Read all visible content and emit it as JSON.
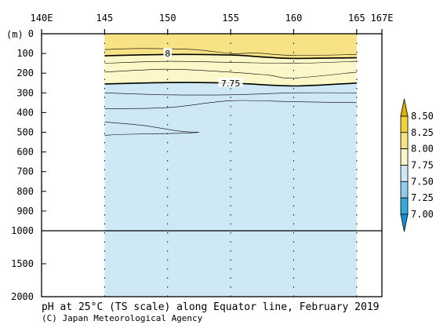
{
  "chart_data": {
    "type": "contour",
    "title": "pH at 25°C (TS scale) along Equator line, February 2019",
    "credit": "(C) Japan Meteorological Agency",
    "y_unit": "(m)",
    "x_ticks": [
      {
        "value": 140,
        "label": "140E"
      },
      {
        "value": 145,
        "label": "145"
      },
      {
        "value": 150,
        "label": "150"
      },
      {
        "value": 155,
        "label": "155"
      },
      {
        "value": 160,
        "label": "160"
      },
      {
        "value": 165,
        "label": "165"
      },
      {
        "value": 167,
        "label": "167E"
      }
    ],
    "xlim": [
      140,
      167
    ],
    "data_xlim": [
      145,
      165
    ],
    "y_ticks_upper": [
      0,
      100,
      200,
      300,
      400,
      500,
      600,
      700,
      800,
      900,
      1000
    ],
    "y_ticks_lower": [
      1500,
      2000
    ],
    "y_break": 1000,
    "ylim": [
      0,
      2000
    ],
    "station_lines": [
      150,
      155,
      160
    ],
    "contour_levels": [
      7.0,
      7.25,
      7.5,
      7.75,
      8.0,
      8.25,
      8.5
    ],
    "colorbar": {
      "labels": [
        "8.50",
        "8.25",
        "8.00",
        "7.75",
        "7.50",
        "7.25",
        "7.00"
      ],
      "band_colors": [
        "#f2d13a",
        "#f7e385",
        "#fcf7c8",
        "#cfe8f6",
        "#8fcbec",
        "#35a8de"
      ],
      "tip_top_color": "#e6b000",
      "tip_bottom_color": "#1a8fd4"
    },
    "fill_regions": [
      {
        "range": "8.00-8.25",
        "color": "#f7e385"
      },
      {
        "range": "7.75-8.00",
        "color": "#fcf7c8"
      },
      {
        "range": "7.50-7.75",
        "color": "#cfe8f6"
      }
    ],
    "contours": [
      {
        "level": 8.0,
        "bold": true,
        "label": "8",
        "label_at": [
          150,
          100
        ],
        "points": [
          [
            145,
            112
          ],
          [
            150,
            105
          ],
          [
            155,
            108
          ],
          [
            158,
            120
          ],
          [
            160,
            125
          ],
          [
            165,
            122
          ]
        ]
      },
      {
        "level": 7.75,
        "bold": true,
        "label": "7.75",
        "label_at": [
          155,
          250
        ],
        "points": [
          [
            145,
            255
          ],
          [
            150,
            248
          ],
          [
            155,
            250
          ],
          [
            160,
            265
          ],
          [
            165,
            250
          ]
        ]
      },
      {
        "level": 8.05,
        "bold": false,
        "points": [
          [
            145,
            80
          ],
          [
            148,
            75
          ],
          [
            152,
            80
          ],
          [
            155,
            100
          ],
          [
            157,
            98
          ],
          [
            160,
            110
          ],
          [
            165,
            105
          ]
        ]
      },
      {
        "level": 7.95,
        "bold": false,
        "points": [
          [
            145,
            150
          ],
          [
            150,
            140
          ],
          [
            155,
            145
          ],
          [
            160,
            150
          ],
          [
            165,
            140
          ]
        ]
      },
      {
        "level": 7.85,
        "bold": false,
        "points": [
          [
            145,
            195
          ],
          [
            150,
            180
          ],
          [
            155,
            195
          ],
          [
            158,
            210
          ],
          [
            160,
            225
          ],
          [
            165,
            195
          ]
        ]
      },
      {
        "level": 7.7,
        "bold": false,
        "points": [
          [
            145,
            300
          ],
          [
            150,
            310
          ],
          [
            155,
            310
          ],
          [
            160,
            300
          ],
          [
            165,
            300
          ]
        ]
      },
      {
        "level": 7.65,
        "bold": false,
        "points": [
          [
            145,
            380
          ],
          [
            150,
            375
          ],
          [
            155,
            340
          ],
          [
            160,
            345
          ],
          [
            165,
            350
          ]
        ]
      },
      {
        "level": 7.6,
        "bold": false,
        "points": [
          [
            145,
            448
          ],
          [
            148,
            465
          ],
          [
            151,
            495
          ],
          [
            152.5,
            500
          ],
          [
            151,
            505
          ],
          [
            147,
            510
          ],
          [
            145,
            515
          ]
        ]
      }
    ]
  }
}
